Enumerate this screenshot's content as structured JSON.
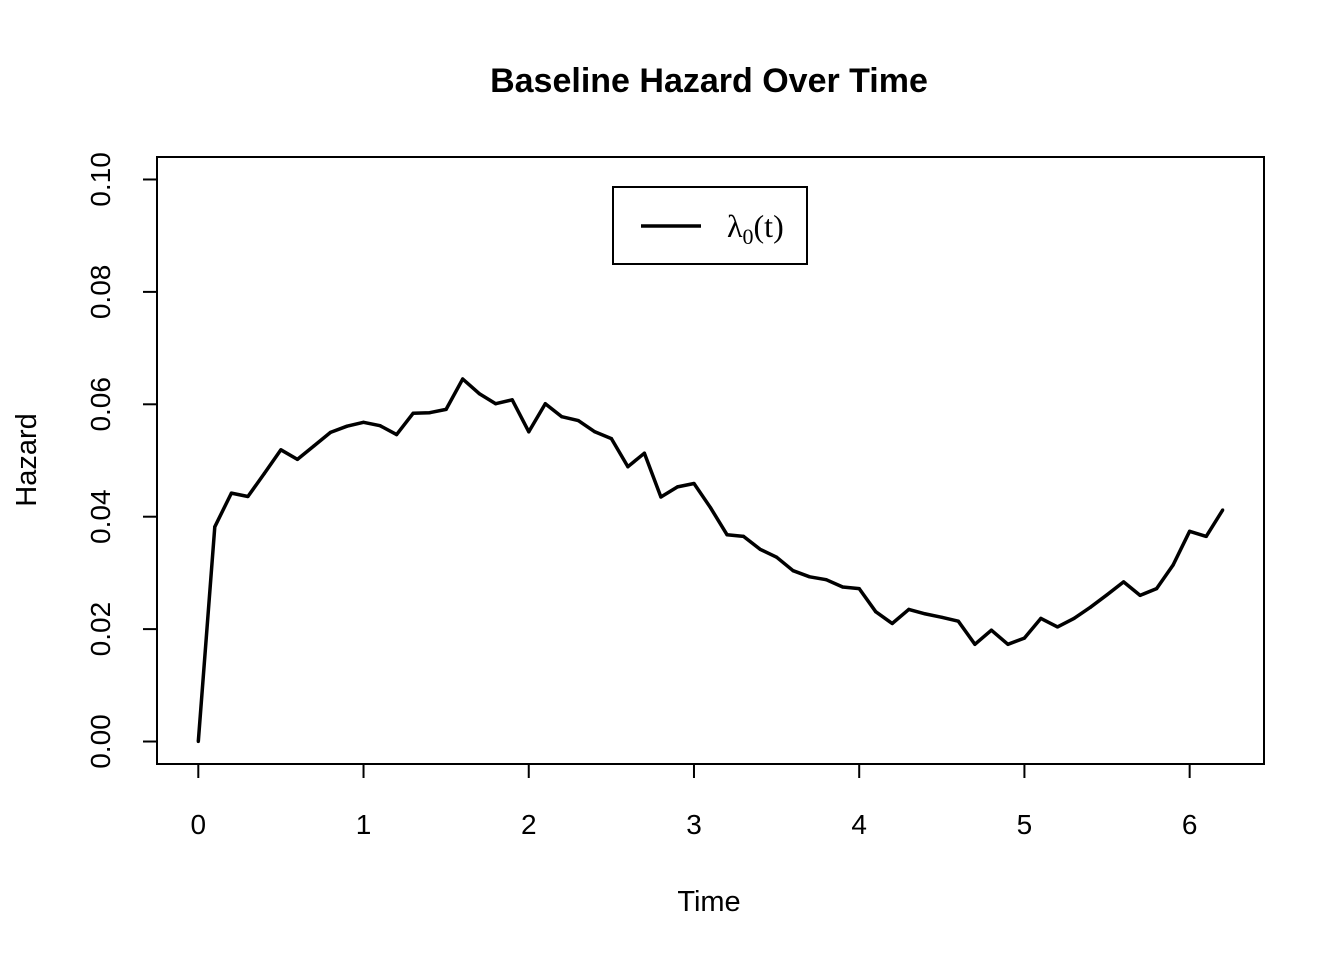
{
  "chart_data": {
    "type": "line",
    "title": "Baseline Hazard Over Time",
    "xlabel": "Time",
    "ylabel": "Hazard",
    "xlim": [
      -0.25,
      6.45
    ],
    "ylim": [
      -0.004,
      0.104
    ],
    "x_ticks": [
      0,
      1,
      2,
      3,
      4,
      5,
      6
    ],
    "x_tick_labels": [
      "0",
      "1",
      "2",
      "3",
      "4",
      "5",
      "6"
    ],
    "y_ticks": [
      0,
      0.02,
      0.04,
      0.06,
      0.08,
      0.1
    ],
    "y_tick_labels": [
      "0.00",
      "0.02",
      "0.04",
      "0.06",
      "0.08",
      "0.10"
    ],
    "grid": false,
    "legend_position": "top-center",
    "series": [
      {
        "name": "λ0(t)",
        "name_main": "λ",
        "name_sub": "0",
        "name_suffix": "(t)",
        "color": "#000000",
        "x": [
          0,
          0.1,
          0.2,
          0.3,
          0.4,
          0.5,
          0.6,
          0.7,
          0.8,
          0.9,
          1.0,
          1.1,
          1.2,
          1.3,
          1.4,
          1.5,
          1.6,
          1.7,
          1.8,
          1.9,
          2.0,
          2.1,
          2.2,
          2.3,
          2.4,
          2.5,
          2.6,
          2.7,
          2.8,
          2.9,
          3.0,
          3.1,
          3.2,
          3.3,
          3.4,
          3.5,
          3.6,
          3.7,
          3.8,
          3.9,
          4.0,
          4.1,
          4.2,
          4.3,
          4.4,
          4.5,
          4.6,
          4.7,
          4.8,
          4.9,
          5.0,
          5.1,
          5.2,
          5.3,
          5.4,
          5.5,
          5.6,
          5.7,
          5.8,
          5.9,
          6.0,
          6.1,
          6.2
        ],
        "y": [
          0.0,
          0.0382,
          0.0442,
          0.0436,
          0.0477,
          0.0519,
          0.0502,
          0.0526,
          0.055,
          0.0561,
          0.0568,
          0.0562,
          0.0546,
          0.0584,
          0.0585,
          0.0591,
          0.0645,
          0.0619,
          0.0601,
          0.0608,
          0.0551,
          0.0601,
          0.0578,
          0.0571,
          0.0551,
          0.0539,
          0.0489,
          0.0513,
          0.0435,
          0.0453,
          0.0459,
          0.0416,
          0.0368,
          0.0365,
          0.0342,
          0.0328,
          0.0304,
          0.0293,
          0.0288,
          0.0275,
          0.0272,
          0.0231,
          0.021,
          0.0235,
          0.0227,
          0.0221,
          0.0214,
          0.0173,
          0.0198,
          0.0173,
          0.0184,
          0.0219,
          0.0204,
          0.0219,
          0.0239,
          0.0261,
          0.0284,
          0.026,
          0.0272,
          0.0314,
          0.0374,
          0.0365,
          0.0412
        ]
      }
    ]
  }
}
